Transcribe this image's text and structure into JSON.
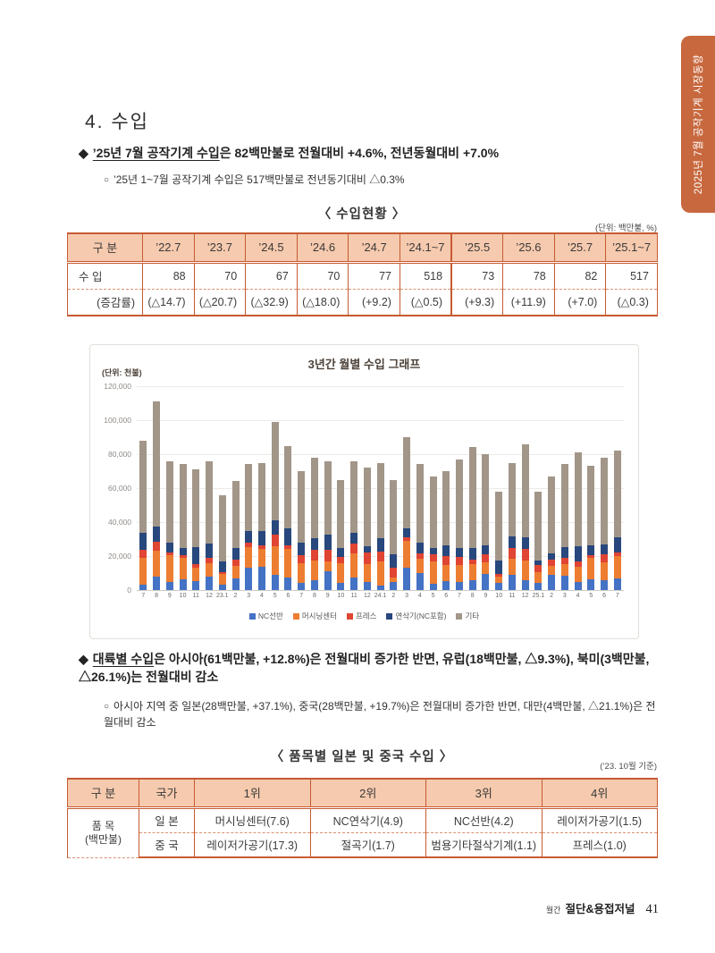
{
  "side_tab": {
    "label": "2025년 7월 공작기계 시장동향",
    "color": "#c8683e"
  },
  "section": {
    "title": "4. 수입"
  },
  "bullet1": {
    "marker": "◆",
    "underlined": "’25년 7월 공작기계 수입",
    "rest": "은 82백만불로 전월대비 +4.6%, 전년동월대비 +7.0%"
  },
  "sub1": {
    "marker": "○",
    "text": "’25년 1~7월 공작기계 수입은 517백만불로 전년동기대비 △0.3%"
  },
  "table1": {
    "title": "〈 수입현황 〉",
    "unit_note": "(단위: 백만불, %)",
    "corner_header": "구 분",
    "headers": [
      "’22.7",
      "’23.7",
      "’24.5",
      "’24.6",
      "’24.7",
      "’24.1~7",
      "’25.5",
      "’25.6",
      "’25.7",
      "’25.1~7"
    ],
    "rows": [
      {
        "label": "수 입",
        "values": [
          "88",
          "70",
          "67",
          "70",
          "77",
          "518",
          "73",
          "78",
          "82",
          "517"
        ]
      },
      {
        "label": "(증감률)",
        "values": [
          "(△14.7)",
          "(△20.7)",
          "(△32.9)",
          "(△18.0)",
          "(+9.2)",
          "(△0.5)",
          "(+9.3)",
          "(+11.9)",
          "(+7.0)",
          "(△0.3)"
        ]
      }
    ]
  },
  "chart_data": {
    "type": "bar",
    "stacked": true,
    "title": "3년간 월별 수입 그래프",
    "unit_label": "(단위: 천불)",
    "ylim": [
      0,
      120000
    ],
    "ytick_step": 20000,
    "ytick_labels": [
      "0",
      "20,000",
      "40,000",
      "60,000",
      "80,000",
      "100,000",
      "120,000"
    ],
    "grid": true,
    "legend_position": "bottom",
    "categories": [
      "7",
      "8",
      "9",
      "10",
      "11",
      "12",
      "23.1",
      "2",
      "3",
      "4",
      "5",
      "6",
      "7",
      "8",
      "9",
      "10",
      "11",
      "12",
      "24.1",
      "2",
      "3",
      "4",
      "5",
      "6",
      "7",
      "8",
      "9",
      "10",
      "11",
      "12",
      "25.1",
      "2",
      "3",
      "4",
      "5",
      "6",
      "7"
    ],
    "series": [
      {
        "name": "NC선반",
        "color": "#4472c4",
        "values": [
          3000,
          8000,
          5000,
          6500,
          5500,
          8000,
          3000,
          7000,
          13000,
          13500,
          9000,
          7500,
          4000,
          6000,
          11000,
          4000,
          7500,
          4500,
          2500,
          5000,
          13000,
          10000,
          3500,
          5500,
          5000,
          6000,
          9500,
          4000,
          9000,
          6000,
          4000,
          9000,
          8500,
          5000,
          6500,
          6000,
          7000
        ]
      },
      {
        "name": "머시닝센터",
        "color": "#ed7d31",
        "values": [
          16000,
          15000,
          15500,
          12500,
          7500,
          8000,
          6500,
          7000,
          12500,
          10500,
          17000,
          16500,
          12000,
          11500,
          6000,
          12000,
          14000,
          11000,
          14500,
          2500,
          16000,
          8500,
          13500,
          9500,
          9500,
          9500,
          7000,
          4000,
          9500,
          11500,
          6500,
          5000,
          7000,
          8500,
          12500,
          10500,
          13000
        ]
      },
      {
        "name": "프레스",
        "color": "#e04433",
        "values": [
          4500,
          5500,
          1500,
          1500,
          2500,
          3000,
          1000,
          4000,
          2500,
          2500,
          6500,
          2500,
          4500,
          6000,
          6500,
          3500,
          6000,
          6500,
          5500,
          5500,
          2000,
          3000,
          4000,
          5000,
          5000,
          2500,
          4500,
          1500,
          6500,
          6500,
          4000,
          4000,
          3500,
          3500,
          1500,
          4500,
          2000
        ]
      },
      {
        "name": "연삭기(NC포함)",
        "color": "#27477d",
        "values": [
          10000,
          9000,
          6000,
          4500,
          10000,
          8500,
          6500,
          7000,
          7000,
          8000,
          8500,
          10000,
          7500,
          7000,
          9000,
          5000,
          6000,
          4000,
          8000,
          8000,
          5500,
          6500,
          4000,
          6500,
          5500,
          6500,
          5500,
          8000,
          6500,
          7000,
          3000,
          3500,
          6500,
          9000,
          6000,
          6000,
          9000
        ]
      },
      {
        "name": "기타",
        "color": "#a29689",
        "values": [
          54500,
          73500,
          48000,
          49000,
          45500,
          48500,
          39000,
          39000,
          39000,
          40500,
          58000,
          48500,
          42000,
          47500,
          43500,
          40500,
          42500,
          46000,
          44500,
          44000,
          53500,
          46000,
          42000,
          43500,
          52000,
          59500,
          53500,
          40500,
          43500,
          55000,
          40500,
          45500,
          48500,
          55000,
          46500,
          51000,
          51000
        ]
      }
    ]
  },
  "bullet2": {
    "marker": "◆",
    "underlined": "대륙별 수입",
    "rest": "은 아시아(61백만불, +12.8%)은 전월대비 증가한 반면,  유럽(18백만불, △9.3%), 북미(3백만불, △26.1%)는 전월대비 감소"
  },
  "sub2": {
    "marker": "○",
    "text": "아시아 지역 중 일본(28백만불, +37.1%), 중국(28백만불, +19.7%)은 전월대비 증가한 반면, 대만(4백만불, △21.1%)은 전월대비 감소"
  },
  "table2": {
    "title": "〈 품목별 일본 및 중국 수입 〉",
    "note": "(’23. 10월 기준)",
    "headers": [
      "구 분",
      "국가",
      "1위",
      "2위",
      "3위",
      "4위"
    ],
    "row_label_line1": "품 목",
    "row_label_line2": "(백만불)",
    "rows": [
      {
        "country": "일 본",
        "values": [
          "머시닝센터(7.6)",
          "NC연삭기(4.9)",
          "NC선반(4.2)",
          "레이저가공기(1.5)"
        ]
      },
      {
        "country": "중 국",
        "values": [
          "레이저가공기(17.3)",
          "절곡기(1.7)",
          "범용기타절삭기계(1.1)",
          "프레스(1.0)"
        ]
      }
    ]
  },
  "footer": {
    "prefix": "월간",
    "journal": "절단&용접저널",
    "page": "41"
  }
}
